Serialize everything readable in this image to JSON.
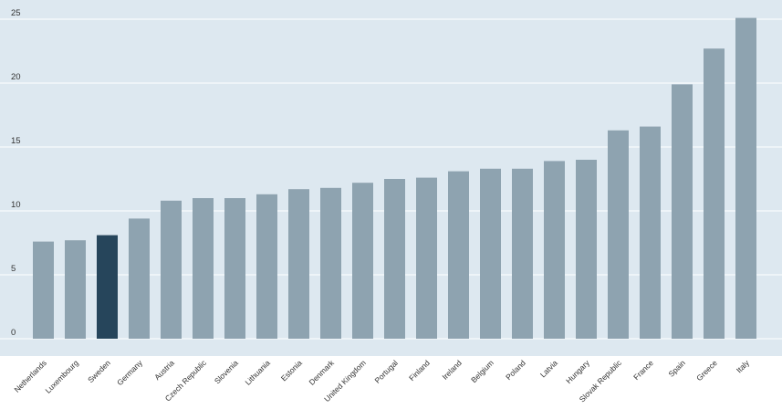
{
  "chart_data": {
    "type": "bar",
    "title": "",
    "xlabel": "",
    "ylabel": "",
    "ylim": [
      0,
      25
    ],
    "yticks": [
      "0",
      "5",
      "10",
      "15",
      "20",
      "25"
    ],
    "grid": true,
    "categories": [
      "Netherlands",
      "Luxembourg",
      "Sweden",
      "Germany",
      "Austria",
      "Czech Republic",
      "Slovenia",
      "Lithuania",
      "Estonia",
      "Denmark",
      "United Kingdom",
      "Portugal",
      "Finland",
      "Ireland",
      "Belgium",
      "Poland",
      "Latvia",
      "Hungary",
      "Slovak Republic",
      "France",
      "Spain",
      "Greece",
      "Italy"
    ],
    "values": [
      7.6,
      7.7,
      8.1,
      9.4,
      10.8,
      11.0,
      11.0,
      11.3,
      11.7,
      11.8,
      12.2,
      12.5,
      12.6,
      13.1,
      13.3,
      13.3,
      13.9,
      14.0,
      16.3,
      16.6,
      19.9,
      22.7,
      25.1
    ],
    "colors": {
      "background": "#dde8f0",
      "bar": "#8ea3b0",
      "highlight": "#26455b",
      "grid": "#ffffff",
      "highlight_category": "Sweden"
    }
  }
}
